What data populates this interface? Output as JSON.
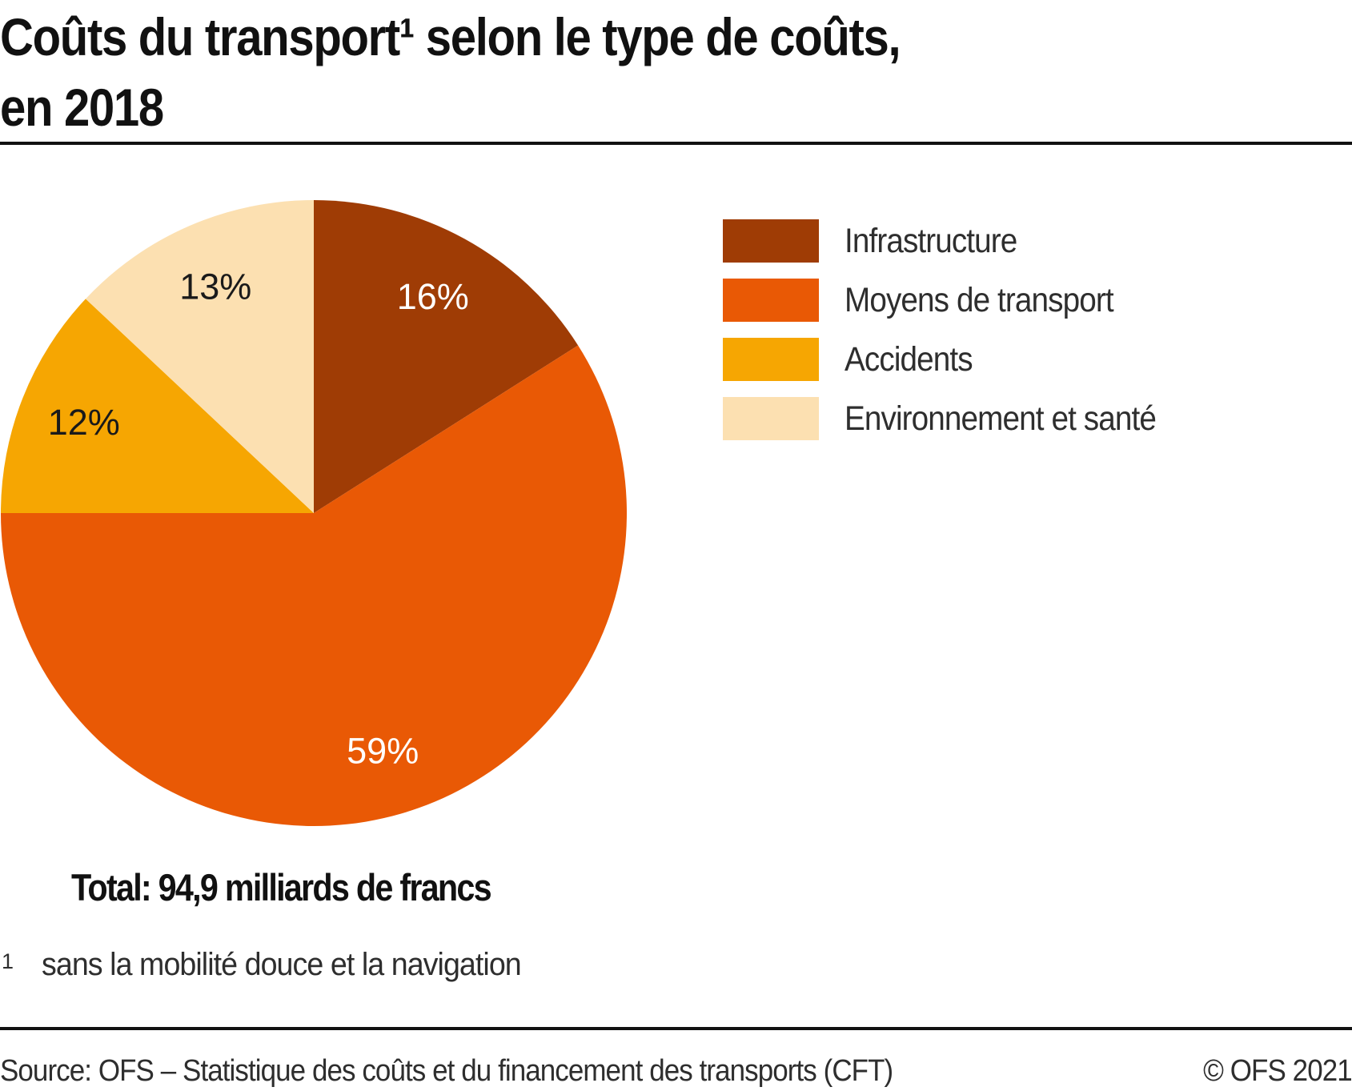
{
  "page": {
    "title_line1": "Coûts du transport¹ selon le type de coûts,",
    "title_line2": "en 2018",
    "total_label": "Total: 94,9 milliards de francs",
    "footnote_marker": "1",
    "footnote_text": "sans la mobilité douce et la navigation",
    "source_left": "Source: OFS – Statistique des coûts et du financement des transports (CFT)",
    "source_right": "© OFS 2021"
  },
  "colors": {
    "text": "#111111",
    "secondary_text": "#2e2e2e",
    "rule": "#111111",
    "background": "#ffffff"
  },
  "chart_data": {
    "type": "pie",
    "title": "Coûts du transport selon le type de coûts, en 2018",
    "unit": "percent",
    "total_annotation": "Total: 94,9 milliards de francs",
    "total_value_mrd_chf": 94.9,
    "start_position": "12-oclock",
    "direction": "clockwise",
    "legend_position": "right",
    "slices": [
      {
        "label": "Infrastructure",
        "value": 16,
        "display": "16%",
        "color": "#9f3c05",
        "label_color": "#ffffff"
      },
      {
        "label": "Moyens de transport",
        "value": 59,
        "display": "59%",
        "color": "#e95905",
        "label_color": "#ffffff"
      },
      {
        "label": "Accidents",
        "value": 12,
        "display": "12%",
        "color": "#f6a602",
        "label_color": "#1a1a1a"
      },
      {
        "label": "Environnement et santé",
        "value": 13,
        "display": "13%",
        "color": "#fce0b1",
        "label_color": "#1a1a1a"
      }
    ]
  }
}
